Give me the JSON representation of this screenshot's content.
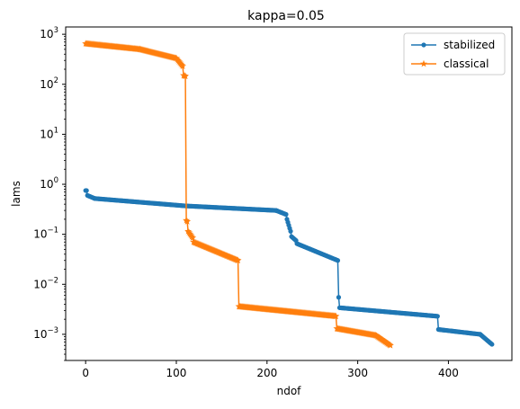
{
  "chart_data": {
    "type": "line",
    "title": "kappa=0.05",
    "xlabel": "ndof",
    "ylabel": "lams",
    "xlim": [
      -22,
      470
    ],
    "ylim": [
      0.0003,
      1400
    ],
    "yscale": "log",
    "grid": false,
    "legend_position": "top-right",
    "x_ticks": [
      {
        "value": 0,
        "label": "0"
      },
      {
        "value": 100,
        "label": "100"
      },
      {
        "value": 200,
        "label": "200"
      },
      {
        "value": 300,
        "label": "300"
      },
      {
        "value": 400,
        "label": "400"
      }
    ],
    "y_ticks": [
      {
        "value": 0.001,
        "base": "10",
        "exp": "−3"
      },
      {
        "value": 0.01,
        "base": "10",
        "exp": "−2"
      },
      {
        "value": 0.1,
        "base": "10",
        "exp": "−1"
      },
      {
        "value": 1,
        "base": "10",
        "exp": "0"
      },
      {
        "value": 10,
        "base": "10",
        "exp": "1"
      },
      {
        "value": 100,
        "base": "10",
        "exp": "2"
      },
      {
        "value": 1000,
        "base": "10",
        "exp": "3"
      }
    ],
    "series": [
      {
        "name": "stabilized",
        "color": "#1f77b4",
        "marker": "circle",
        "segments": [
          {
            "start": 0,
            "end": 1,
            "vstart": 0.75,
            "vend": 0.75
          },
          {
            "start": 2,
            "end": 10,
            "vstart": 0.6,
            "vend": 0.52
          },
          {
            "start": 10,
            "end": 110,
            "vstart": 0.52,
            "vend": 0.37
          },
          {
            "start": 110,
            "end": 210,
            "vstart": 0.37,
            "vend": 0.3
          },
          {
            "start": 210,
            "end": 221,
            "vstart": 0.3,
            "vend": 0.25
          },
          {
            "start": 222,
            "end": 226,
            "vstart": 0.2,
            "vend": 0.115
          },
          {
            "start": 227,
            "end": 232,
            "vstart": 0.09,
            "vend": 0.075
          },
          {
            "start": 233,
            "end": 278,
            "vstart": 0.065,
            "vend": 0.03
          },
          {
            "start": 279,
            "end": 279,
            "vstart": 0.0055,
            "vend": 0.0055
          },
          {
            "start": 280,
            "end": 388,
            "vstart": 0.0034,
            "vend": 0.0023
          },
          {
            "start": 389,
            "end": 435,
            "vstart": 0.00125,
            "vend": 0.001
          },
          {
            "start": 435,
            "end": 448,
            "vstart": 0.001,
            "vend": 0.00063
          }
        ]
      },
      {
        "name": "classical",
        "color": "#ff7f0e",
        "marker": "star",
        "segments": [
          {
            "start": 0,
            "end": 60,
            "vstart": 650,
            "vend": 500
          },
          {
            "start": 60,
            "end": 100,
            "vstart": 500,
            "vend": 330
          },
          {
            "start": 100,
            "end": 107,
            "vstart": 330,
            "vend": 230
          },
          {
            "start": 108,
            "end": 110,
            "vstart": 150,
            "vend": 145
          },
          {
            "start": 111,
            "end": 112,
            "vstart": 0.19,
            "vend": 0.18
          },
          {
            "start": 113,
            "end": 118,
            "vstart": 0.115,
            "vend": 0.085
          },
          {
            "start": 119,
            "end": 168,
            "vstart": 0.07,
            "vend": 0.03
          },
          {
            "start": 169,
            "end": 276,
            "vstart": 0.0036,
            "vend": 0.0023
          },
          {
            "start": 277,
            "end": 320,
            "vstart": 0.0013,
            "vend": 0.00095
          },
          {
            "start": 320,
            "end": 336,
            "vstart": 0.00095,
            "vend": 0.0006
          }
        ]
      }
    ]
  }
}
